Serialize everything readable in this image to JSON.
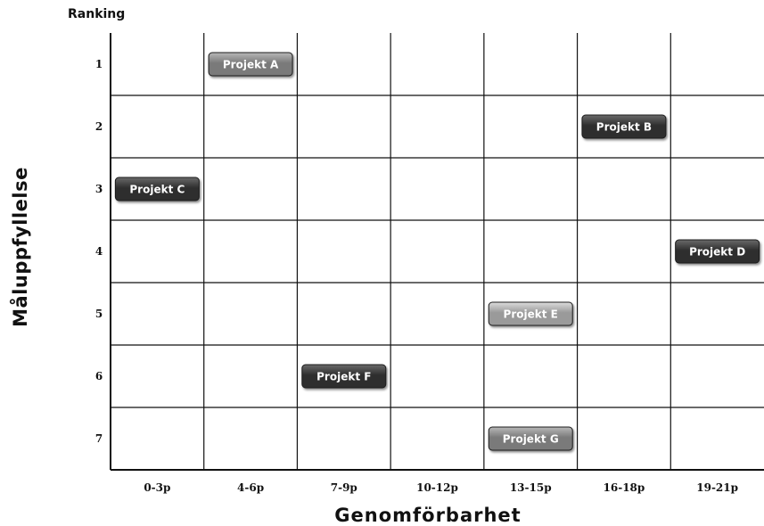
{
  "ranking_label": "Ranking",
  "y_axis_title": "Måluppfyllelse",
  "x_axis_title": "Genomförbarhet",
  "colors": {
    "badge_dark": "#2e2e2e",
    "badge_dark_top": "#6a6a6a",
    "badge_medium": "#7a7a7a",
    "badge_medium_top": "#b8b8b8",
    "badge_light": "#9a9a9a",
    "badge_light_top": "#dcdcdc",
    "grid_line": "#111111"
  },
  "chart_data": {
    "type": "table",
    "columns": [
      "0-3p",
      "4-6p",
      "7-9p",
      "10-12p",
      "13-15p",
      "16-18p",
      "19-21p"
    ],
    "rows": [
      "1",
      "2",
      "3",
      "4",
      "5",
      "6",
      "7"
    ],
    "projects": [
      {
        "name": "Projekt A",
        "column": "4-6p",
        "row": "1",
        "shade": "medium"
      },
      {
        "name": "Projekt B",
        "column": "16-18p",
        "row": "2",
        "shade": "dark"
      },
      {
        "name": "Projekt C",
        "column": "0-3p",
        "row": "3",
        "shade": "dark"
      },
      {
        "name": "Projekt D",
        "column": "19-21p",
        "row": "4",
        "shade": "dark"
      },
      {
        "name": "Projekt E",
        "column": "13-15p",
        "row": "5",
        "shade": "light"
      },
      {
        "name": "Projekt F",
        "column": "7-9p",
        "row": "6",
        "shade": "dark"
      },
      {
        "name": "Projekt G",
        "column": "13-15p",
        "row": "7",
        "shade": "medium"
      }
    ]
  }
}
